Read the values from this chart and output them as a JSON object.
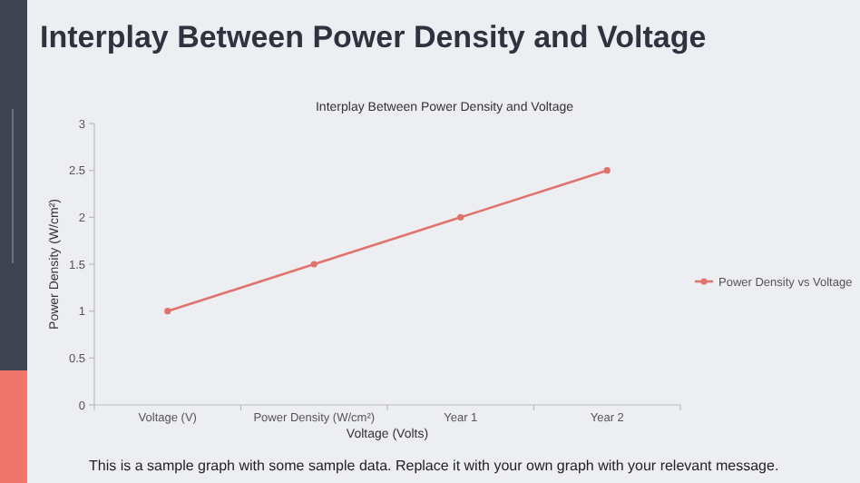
{
  "chart_data": {
    "type": "line",
    "title": "Interplay Between Power Density and Voltage",
    "subtitle": "Interplay Between Power Density and Voltage",
    "xlabel": "Voltage (Volts)",
    "ylabel": "Power Density (W/cm²)",
    "categories": [
      "Voltage (V)",
      "Power Density (W/cm²)",
      "Year 1",
      "Year 2"
    ],
    "series": [
      {
        "name": "Power Density vs Voltage",
        "color": "#e0736c",
        "values": [
          1,
          1.5,
          2,
          2.5
        ]
      }
    ],
    "ylim": [
      0,
      3
    ],
    "yticks": [
      0,
      0.5,
      1,
      1.5,
      2,
      2.5,
      3
    ],
    "grid": false,
    "legend": "right",
    "marker": "circle",
    "line_style": "solid",
    "annotations": [
      "This is a sample graph with some sample data. Replace it with your own graph with your relevant message."
    ]
  }
}
